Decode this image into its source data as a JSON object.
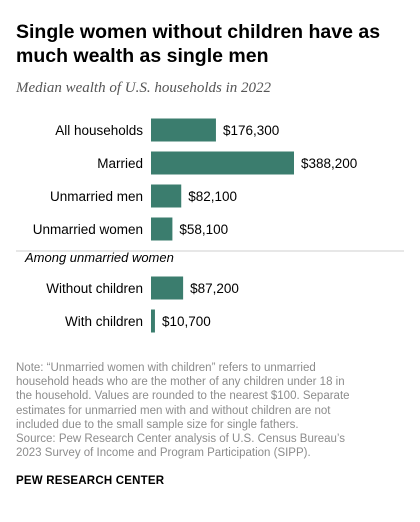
{
  "header": {
    "title": "Single women without children have as much wealth as single men",
    "subtitle": "Median wealth of U.S. households in 2022"
  },
  "colors": {
    "bar": "#3b7d6e",
    "note": "#8c8c8c"
  },
  "chart_data": {
    "type": "bar",
    "orientation": "horizontal",
    "title": "Single women without children have as much wealth as single men",
    "subtitle": "Median wealth of U.S. households in 2022",
    "xlabel": "",
    "ylabel": "",
    "xlim": [
      0,
      388200
    ],
    "grid": false,
    "legend": "none",
    "groups": [
      {
        "heading": "",
        "categories": [
          "All households",
          "Married",
          "Unmarried men",
          "Unmarried women"
        ],
        "values": [
          176300,
          388200,
          82100,
          58100
        ],
        "labels": [
          "$176,300",
          "$388,200",
          "$82,100",
          "$58,100"
        ]
      },
      {
        "heading": "Among unmarried women",
        "categories": [
          "Without children",
          "With children"
        ],
        "values": [
          87200,
          10700
        ],
        "labels": [
          "$87,200",
          "$10,700"
        ]
      }
    ]
  },
  "note": {
    "lines": [
      "Note: “Unmarried women with children” refers to unmarried",
      "household heads who are the mother of any children under 18 in",
      "the household. Values are rounded to the nearest $100. Separate",
      "estimates for unmarried men with and without children are not",
      "included due to the small sample size for single fathers.",
      "Source: Pew Research Center analysis of U.S. Census Bureau’s",
      "2023 Survey of Income and Program Participation (SIPP)."
    ]
  },
  "footer": {
    "brand": "PEW RESEARCH CENTER"
  }
}
